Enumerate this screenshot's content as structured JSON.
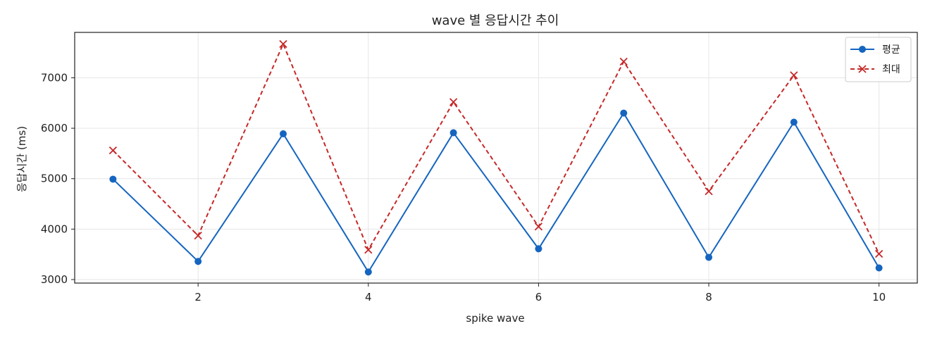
{
  "chart_data": {
    "type": "line",
    "title": "wave 별 응답시간 추이",
    "xlabel": "spike wave",
    "ylabel": "응답시간 (ms)",
    "xlim": [
      0.55,
      10.45
    ],
    "ylim": [
      2930,
      7900
    ],
    "xticks": [
      2,
      4,
      6,
      8,
      10
    ],
    "yticks": [
      3000,
      4000,
      5000,
      6000,
      7000
    ],
    "grid": true,
    "legend_position": "top-right",
    "x": [
      1,
      2,
      3,
      4,
      5,
      6,
      7,
      8,
      9,
      10
    ],
    "series": [
      {
        "name": "평균",
        "values": [
          4990,
          3360,
          5890,
          3150,
          5910,
          3610,
          6300,
          3440,
          6120,
          3230
        ],
        "color": "#1565c0",
        "line_style": "solid",
        "marker": "circle"
      },
      {
        "name": "최대",
        "values": [
          5560,
          3870,
          7670,
          3590,
          6520,
          4050,
          7320,
          4750,
          7050,
          3510
        ],
        "color": "#c62828",
        "line_style": "dashed",
        "marker": "x"
      }
    ]
  }
}
